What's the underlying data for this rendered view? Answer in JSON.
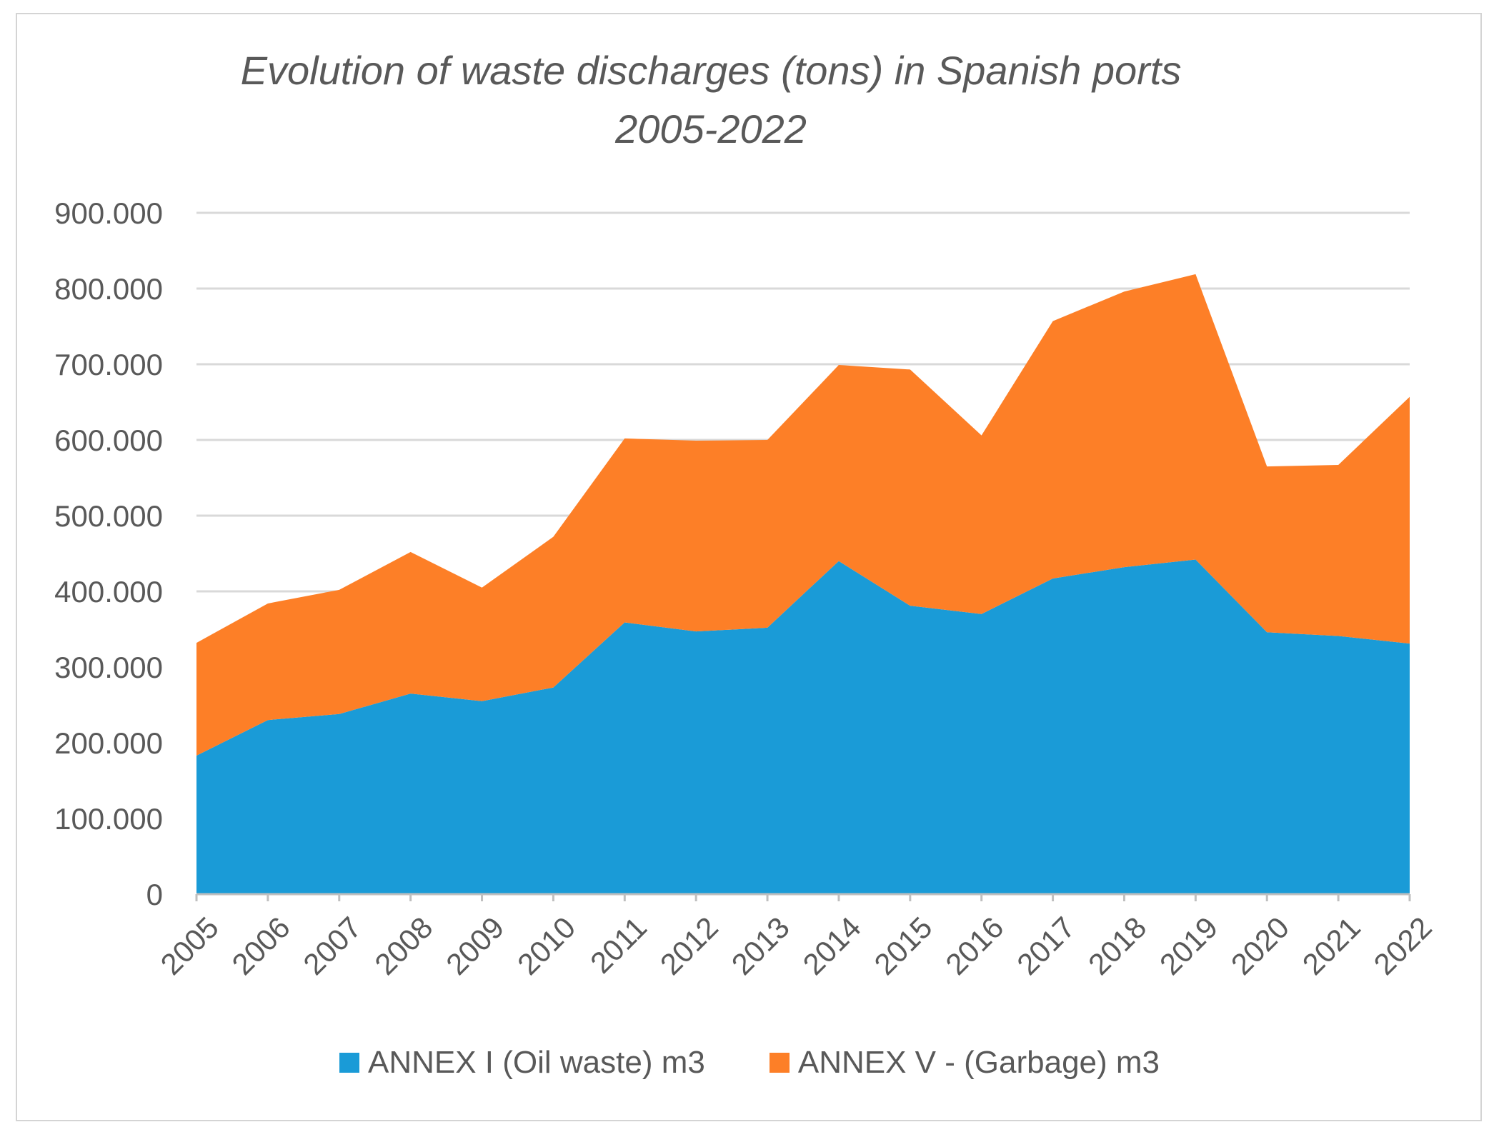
{
  "chart_data": {
    "type": "area",
    "stacked": true,
    "title_lines": [
      "Evolution of waste discharges (tons) in Spanish ports",
      "2005-2022"
    ],
    "categories": [
      "2005",
      "2006",
      "2007",
      "2008",
      "2009",
      "2010",
      "2011",
      "2012",
      "2013",
      "2014",
      "2015",
      "2016",
      "2017",
      "2018",
      "2019",
      "2020",
      "2021",
      "2022"
    ],
    "series": [
      {
        "name": "ANNEX I (Oil waste) m3",
        "color": "#1a9bd7",
        "values": [
          183000,
          230000,
          238000,
          265000,
          255000,
          273000,
          359000,
          347000,
          352000,
          440000,
          381000,
          370000,
          417000,
          432000,
          442000,
          346000,
          341000,
          331000
        ]
      },
      {
        "name": "ANNEX V - (Garbage) m3",
        "color": "#fd7f27",
        "values": [
          149000,
          154000,
          164000,
          187000,
          150000,
          199000,
          243000,
          252000,
          248000,
          259000,
          312000,
          236000,
          340000,
          364000,
          377000,
          219000,
          226000,
          326000
        ]
      }
    ],
    "totals": [
      332000,
      384000,
      402000,
      452000,
      405000,
      472000,
      602000,
      599000,
      600000,
      699000,
      693000,
      606000,
      757000,
      796000,
      819000,
      565000,
      567000,
      657000
    ],
    "ylim": [
      0,
      900000
    ],
    "yticks": [
      0,
      100000,
      200000,
      300000,
      400000,
      500000,
      600000,
      700000,
      800000,
      900000
    ],
    "ytick_labels": [
      "0",
      "100.000",
      "200.000",
      "300.000",
      "400.000",
      "500.000",
      "600.000",
      "700.000",
      "800.000",
      "900.000"
    ],
    "legend_position": "bottom",
    "grid": true,
    "gridline_color": "#d9d9d9"
  }
}
